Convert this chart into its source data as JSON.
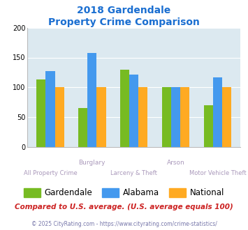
{
  "title_line1": "2018 Gardendale",
  "title_line2": "Property Crime Comparison",
  "title_color": "#1b6fd1",
  "categories": [
    "All Property Crime",
    "Burglary",
    "Larceny & Theft",
    "Arson",
    "Motor Vehicle Theft"
  ],
  "gardendale": [
    113,
    65,
    130,
    100,
    70
  ],
  "alabama": [
    127,
    157,
    122,
    100,
    117
  ],
  "national": [
    100,
    100,
    100,
    100,
    100
  ],
  "colors": {
    "gardendale": "#77bb22",
    "alabama": "#4499ee",
    "national": "#ffaa22"
  },
  "ylim": [
    0,
    200
  ],
  "yticks": [
    0,
    50,
    100,
    150,
    200
  ],
  "plot_bg": "#dce9f0",
  "footer_text": "Compared to U.S. average. (U.S. average equals 100)",
  "footer_color": "#cc2222",
  "copyright_text": "© 2025 CityRating.com - https://www.cityrating.com/crime-statistics/",
  "copyright_color": "#7777aa",
  "legend_labels": [
    "Gardendale",
    "Alabama",
    "National"
  ],
  "bar_width": 0.22
}
